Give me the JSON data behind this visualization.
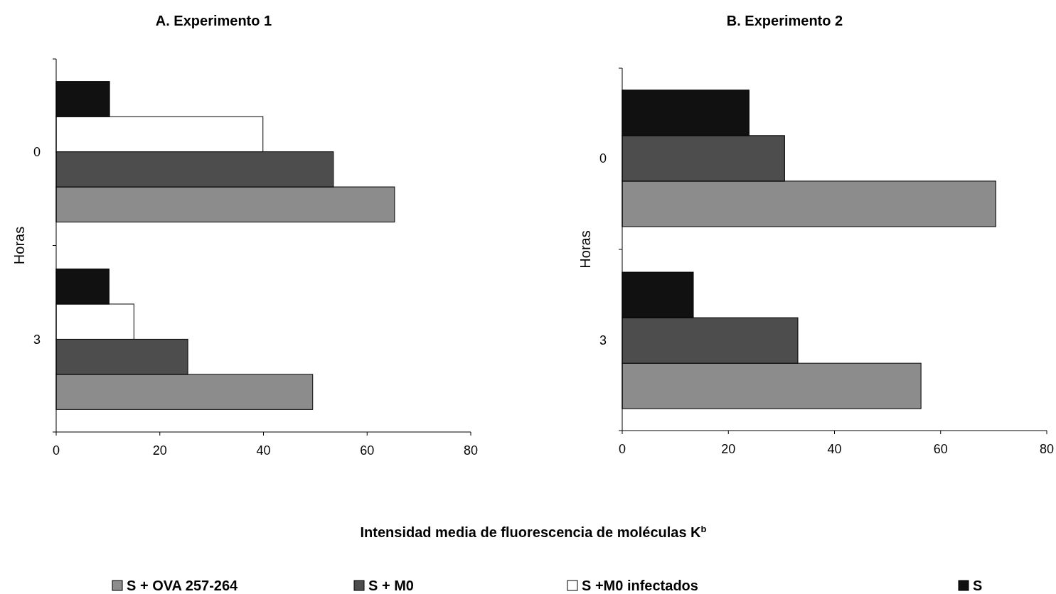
{
  "chart_data": [
    {
      "type": "bar",
      "orientation": "horizontal",
      "title": "A. Experimento 1",
      "ylabel": "Horas",
      "xlabel": "Intensidad media de fluorescencia de moléculas K$^{b}$",
      "categories": [
        "0",
        "3"
      ],
      "xlim": [
        0,
        80
      ],
      "xticks": [
        0,
        20,
        40,
        60,
        80
      ],
      "legend": "bottom",
      "series": [
        {
          "name": "S + OVA 257-264",
          "color": "#8c8c8c",
          "values": [
            65.3,
            49.5
          ]
        },
        {
          "name": "S + M0",
          "color": "#4d4d4d",
          "values": [
            53.5,
            25.4
          ]
        },
        {
          "name": "S +M0 infectados",
          "color": "#ffffff",
          "values": [
            39.9,
            15.0
          ]
        },
        {
          "name": "S",
          "color": "#111111",
          "values": [
            10.3,
            10.2
          ]
        }
      ]
    },
    {
      "type": "bar",
      "orientation": "horizontal",
      "title": "B. Experimento 2",
      "ylabel": "Horas",
      "categories": [
        "0",
        "3"
      ],
      "xlim": [
        0,
        80
      ],
      "xticks": [
        0,
        20,
        40,
        60,
        80
      ],
      "series": [
        {
          "color": "#8c8c8c",
          "values": [
            70.4,
            56.3
          ]
        },
        {
          "color": "#4d4d4d",
          "values": [
            30.6,
            33.1
          ]
        },
        {
          "color": "#111111",
          "values": [
            23.9,
            13.4
          ]
        }
      ]
    }
  ]
}
